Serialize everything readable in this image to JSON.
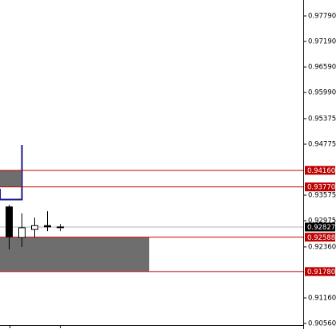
{
  "chart_data": {
    "type": "candlestick",
    "categories": [
      null,
      null,
      null,
      null,
      null
    ],
    "open": [
      0.933,
      0.9258,
      0.9277,
      0.9286,
      0.9283
    ],
    "high": [
      0.9335,
      0.9315,
      0.9305,
      0.932,
      0.929
    ],
    "low": [
      0.923,
      0.9236,
      0.9258,
      0.9273,
      0.9273
    ],
    "close": [
      0.926,
      0.9281,
      0.9286,
      0.9283,
      0.9282
    ],
    "up_color": "#ffffff",
    "down_color": "#000000",
    "ylim": [
      0.90523,
      0.98165
    ],
    "yticks": [
      {
        "value": 0.9779,
        "label": "0.97790"
      },
      {
        "value": 0.9719,
        "label": "0.97190"
      },
      {
        "value": 0.9659,
        "label": "0.96590"
      },
      {
        "value": 0.9599,
        "label": "0.95990"
      },
      {
        "value": 0.95375,
        "label": "0.95375"
      },
      {
        "value": 0.94775,
        "label": "0.94775"
      },
      {
        "value": 0.93575,
        "label": "0.93575"
      },
      {
        "value": 0.92975,
        "label": "0.92975"
      },
      {
        "value": 0.9236,
        "label": "0.92360"
      },
      {
        "value": 0.9116,
        "label": "0.91160"
      },
      {
        "value": 0.9056,
        "label": "0.90560"
      }
    ],
    "levels": [
      {
        "value": 0.9416,
        "label": "0.94160",
        "color": "#c00000"
      },
      {
        "value": 0.9377,
        "label": "0.93770",
        "color": "#c00000"
      },
      {
        "value": 0.92588,
        "label": "0.92588",
        "color": "#c00000"
      },
      {
        "value": 0.9178,
        "label": "0.91780",
        "color": "#c00000"
      }
    ],
    "current_price": {
      "value": 0.92827,
      "label": "0.92827",
      "color": "#000000"
    },
    "zones": [
      {
        "from": 0.9416,
        "to": 0.9377,
        "color": "#6e6e6e"
      },
      {
        "from": 0.92588,
        "to": 0.9178,
        "color": "#6e6e6e"
      }
    ]
  }
}
